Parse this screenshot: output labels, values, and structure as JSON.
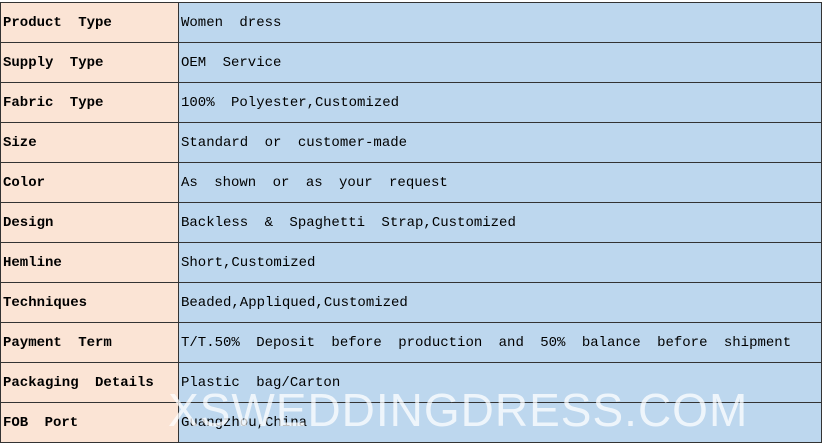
{
  "table": {
    "rows": [
      [
        "Product Type",
        "Women dress"
      ],
      [
        "Supply Type",
        "OEM Service"
      ],
      [
        "Fabric Type",
        "100% Polyester,Customized"
      ],
      [
        "Size",
        "Standard or customer-made"
      ],
      [
        "Color",
        "As shown or as your request"
      ],
      [
        "Design",
        "Backless & Spaghetti Strap,Customized"
      ],
      [
        "Hemline",
        "Short,Customized"
      ],
      [
        "Techniques",
        "Beaded,Appliqued,Customized"
      ],
      [
        "Payment Term",
        "T/T.50% Deposit before production and 50% balance before shipment"
      ],
      [
        "Packaging Details",
        "Plastic bag/Carton"
      ],
      [
        "FOB Port",
        "Guangzhou,China"
      ]
    ]
  },
  "watermark": "XSWEDDINGDRESS.COM"
}
